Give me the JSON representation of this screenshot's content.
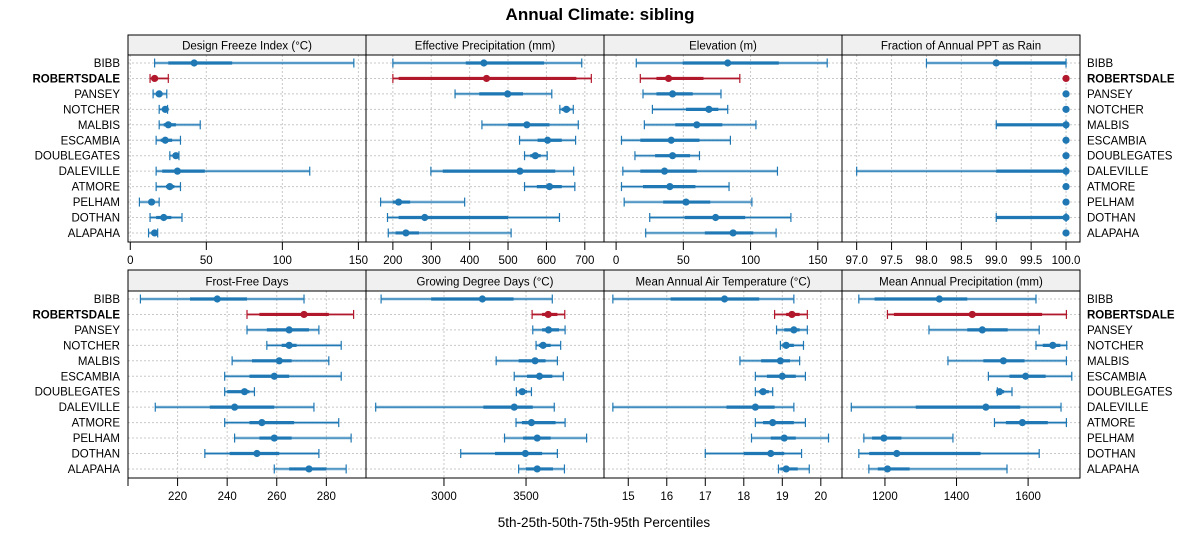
{
  "chart_data": {
    "type": "dotplot-percentile-ranges",
    "title": "Annual Climate: sibling",
    "xlabel": "5th-25th-50th-75th-95th Percentiles",
    "rows": [
      "BIBB",
      "ROBERTSDALE",
      "PANSEY",
      "NOTCHER",
      "MALBIS",
      "ESCAMBIA",
      "DOUBLEGATES",
      "DALEVILLE",
      "ATMORE",
      "PELHAM",
      "DOTHAN",
      "ALAPAHA"
    ],
    "highlighted_row": "ROBERTSDALE",
    "colors": {
      "default": "#1f78b4",
      "highlight": "#b2182b",
      "strip_bg": "#f0f0f0",
      "grid": "#c8c8c8"
    },
    "grid": true,
    "percentile_keys": [
      "p5",
      "p25",
      "p50",
      "p75",
      "p95"
    ],
    "panels": [
      {
        "name": "Design Freeze Index (°C)",
        "xlim": [
          -1.5,
          155
        ],
        "ticks": [
          0,
          50,
          100,
          150
        ],
        "tick_labels": [
          "0",
          "50",
          "100",
          "150"
        ],
        "values": [
          [
            16,
            25,
            42,
            67,
            147
          ],
          [
            13,
            15,
            16,
            18,
            25
          ],
          [
            15,
            17,
            19,
            20,
            24
          ],
          [
            19,
            21.5,
            23,
            24,
            24.5
          ],
          [
            19,
            22,
            25,
            30,
            46
          ],
          [
            17,
            20,
            23,
            27.5,
            33
          ],
          [
            26,
            28,
            30,
            31,
            32
          ],
          [
            17,
            21,
            31,
            49,
            118
          ],
          [
            17,
            23.5,
            26,
            29,
            33
          ],
          [
            6,
            12.5,
            14,
            16,
            19
          ],
          [
            13,
            17,
            22,
            27,
            34
          ],
          [
            12,
            14,
            16,
            17,
            18
          ]
        ]
      },
      {
        "name": "Effective Precipitation (mm)",
        "xlim": [
          130,
          750
        ],
        "ticks": [
          200,
          300,
          400,
          500,
          600,
          700
        ],
        "tick_labels": [
          "200",
          "300",
          "400",
          "500",
          "600",
          "700"
        ],
        "values": [
          [
            200,
            390,
            437,
            594,
            692
          ],
          [
            200,
            215,
            444,
            678,
            717
          ],
          [
            362,
            425,
            499,
            539,
            614
          ],
          [
            635,
            640,
            652,
            662,
            670
          ],
          [
            432,
            500,
            549,
            608,
            683
          ],
          [
            530,
            577,
            603,
            640,
            676
          ],
          [
            543,
            558,
            571,
            585,
            602
          ],
          [
            299,
            330,
            531,
            623,
            671
          ],
          [
            543,
            575,
            608,
            640,
            674
          ],
          [
            168,
            200,
            215,
            245,
            387
          ],
          [
            186,
            215,
            283,
            500,
            634
          ],
          [
            188,
            207,
            234,
            268,
            508
          ]
        ]
      },
      {
        "name": "Elevation (m)",
        "xlim": [
          -9,
          168
        ],
        "ticks": [
          0,
          50,
          100,
          150
        ],
        "tick_labels": [
          "0",
          "50",
          "100",
          "150"
        ],
        "values": [
          [
            15,
            49.5,
            83,
            121,
            157
          ],
          [
            18,
            30,
            39,
            65,
            92
          ],
          [
            20,
            30,
            42,
            57,
            78
          ],
          [
            27,
            52,
            69,
            76,
            83
          ],
          [
            21,
            44,
            60,
            79,
            104
          ],
          [
            4,
            18,
            41,
            62,
            85
          ],
          [
            14,
            29,
            42,
            55,
            62
          ],
          [
            5,
            18,
            36,
            60,
            120
          ],
          [
            4,
            20,
            40,
            59,
            84
          ],
          [
            6,
            35,
            52,
            70,
            101
          ],
          [
            25,
            51,
            74,
            96,
            130
          ],
          [
            22,
            66,
            87,
            102,
            119
          ]
        ]
      },
      {
        "name": "Fraction of Annual PPT as Rain",
        "xlim": [
          96.79,
          100.2
        ],
        "ticks": [
          97.0,
          97.5,
          98.0,
          98.5,
          99.0,
          99.5,
          100.0
        ],
        "tick_labels": [
          "97.0",
          "97.5",
          "98.0",
          "98.5",
          "99.0",
          "99.5",
          "100.0"
        ],
        "values": [
          [
            98.0,
            99.0,
            99.0,
            100,
            100
          ],
          [
            100,
            100,
            100,
            100,
            100
          ],
          [
            100,
            100,
            100,
            100,
            100
          ],
          [
            100,
            100,
            100,
            100,
            100
          ],
          [
            99.0,
            99.0,
            100,
            100,
            100
          ],
          [
            100,
            100,
            100,
            100,
            100
          ],
          [
            100,
            100,
            100,
            100,
            100
          ],
          [
            97.0,
            99.0,
            100,
            100,
            100
          ],
          [
            100,
            100,
            100,
            100,
            100
          ],
          [
            100,
            100,
            100,
            100,
            100
          ],
          [
            99.0,
            99.0,
            100,
            100,
            100
          ],
          [
            100,
            100,
            100,
            100,
            100
          ]
        ]
      },
      {
        "name": "Frost-Free Days",
        "xlim": [
          200,
          296
        ],
        "ticks": [
          200,
          220,
          240,
          260,
          280
        ],
        "tick_labels": [
          "",
          "220",
          "240",
          "260",
          "280"
        ],
        "values": [
          [
            205,
            225,
            236,
            248,
            271
          ],
          [
            248,
            253,
            271,
            281,
            291
          ],
          [
            248,
            256,
            265,
            273,
            277
          ],
          [
            256,
            262,
            265,
            268,
            286
          ],
          [
            242,
            250,
            261,
            266,
            281
          ],
          [
            239,
            249,
            259,
            265,
            286
          ],
          [
            239,
            240,
            247,
            249,
            251
          ],
          [
            211,
            233,
            243,
            259,
            275
          ],
          [
            239,
            249,
            254,
            267,
            285
          ],
          [
            243,
            253,
            259,
            266,
            290
          ],
          [
            231,
            241,
            252,
            261,
            277
          ],
          [
            259,
            265,
            273,
            280,
            288
          ]
        ]
      },
      {
        "name": "Growing Degree Days (°C)",
        "xlim": [
          2525,
          3975
        ],
        "ticks": [
          3000,
          3500
        ],
        "tick_labels": [
          "3000",
          "3500"
        ],
        "values": [
          [
            2617,
            2922,
            3234,
            3424,
            3660
          ],
          [
            3537,
            3598,
            3635,
            3691,
            3736
          ],
          [
            3541,
            3598,
            3637,
            3701,
            3738
          ],
          [
            3561,
            3578,
            3604,
            3650,
            3711
          ],
          [
            3318,
            3455,
            3555,
            3619,
            3691
          ],
          [
            3428,
            3506,
            3582,
            3660,
            3727
          ],
          [
            3441,
            3455,
            3477,
            3506,
            3533
          ],
          [
            2584,
            3240,
            3428,
            3541,
            3672
          ],
          [
            3439,
            3475,
            3533,
            3680,
            3738
          ],
          [
            3369,
            3482,
            3568,
            3650,
            3869
          ],
          [
            3102,
            3311,
            3496,
            3598,
            3691
          ],
          [
            3455,
            3500,
            3568,
            3664,
            3734
          ]
        ]
      },
      {
        "name": "Mean Annual Air Temperature (°C)",
        "xlim": [
          14.37,
          20.55
        ],
        "ticks": [
          15,
          16,
          17,
          18,
          19,
          20
        ],
        "tick_labels": [
          "15",
          "16",
          "17",
          "18",
          "19",
          "20"
        ],
        "values": [
          [
            14.6,
            16.1,
            17.5,
            18.4,
            19.3
          ],
          [
            18.8,
            19.1,
            19.25,
            19.45,
            19.65
          ],
          [
            18.85,
            19.05,
            19.3,
            19.45,
            19.65
          ],
          [
            18.95,
            19.0,
            19.1,
            19.3,
            19.55
          ],
          [
            17.9,
            18.45,
            18.95,
            19.2,
            19.45
          ],
          [
            18.3,
            18.6,
            19.0,
            19.35,
            19.6
          ],
          [
            18.3,
            18.4,
            18.5,
            18.65,
            18.75
          ],
          [
            14.6,
            17.55,
            18.3,
            18.8,
            19.3
          ],
          [
            18.3,
            18.5,
            18.75,
            19.3,
            19.6
          ],
          [
            18.2,
            18.7,
            19.05,
            19.35,
            20.2
          ],
          [
            17.0,
            18.0,
            18.7,
            19.05,
            19.5
          ],
          [
            18.9,
            18.95,
            19.1,
            19.4,
            19.7
          ]
        ]
      },
      {
        "name": "Mean Annual Precipitation (mm)",
        "xlim": [
          1080,
          1745
        ],
        "ticks": [
          1200,
          1400,
          1600
        ],
        "tick_labels": [
          "1200",
          "1400",
          "1600"
        ],
        "values": [
          [
            1127,
            1171,
            1352,
            1430,
            1622
          ],
          [
            1207,
            1225,
            1444,
            1639,
            1707
          ],
          [
            1323,
            1430,
            1472,
            1543,
            1631
          ],
          [
            1622,
            1641,
            1669,
            1690,
            1708
          ],
          [
            1376,
            1475,
            1531,
            1590,
            1707
          ],
          [
            1489,
            1548,
            1593,
            1649,
            1722
          ],
          [
            1514,
            1516,
            1520,
            1533,
            1555
          ],
          [
            1106,
            1286,
            1482,
            1578,
            1692
          ],
          [
            1506,
            1538,
            1584,
            1655,
            1707
          ],
          [
            1141,
            1164,
            1197,
            1246,
            1390
          ],
          [
            1127,
            1156,
            1233,
            1467,
            1631
          ],
          [
            1155,
            1180,
            1207,
            1269,
            1541
          ]
        ]
      }
    ]
  }
}
